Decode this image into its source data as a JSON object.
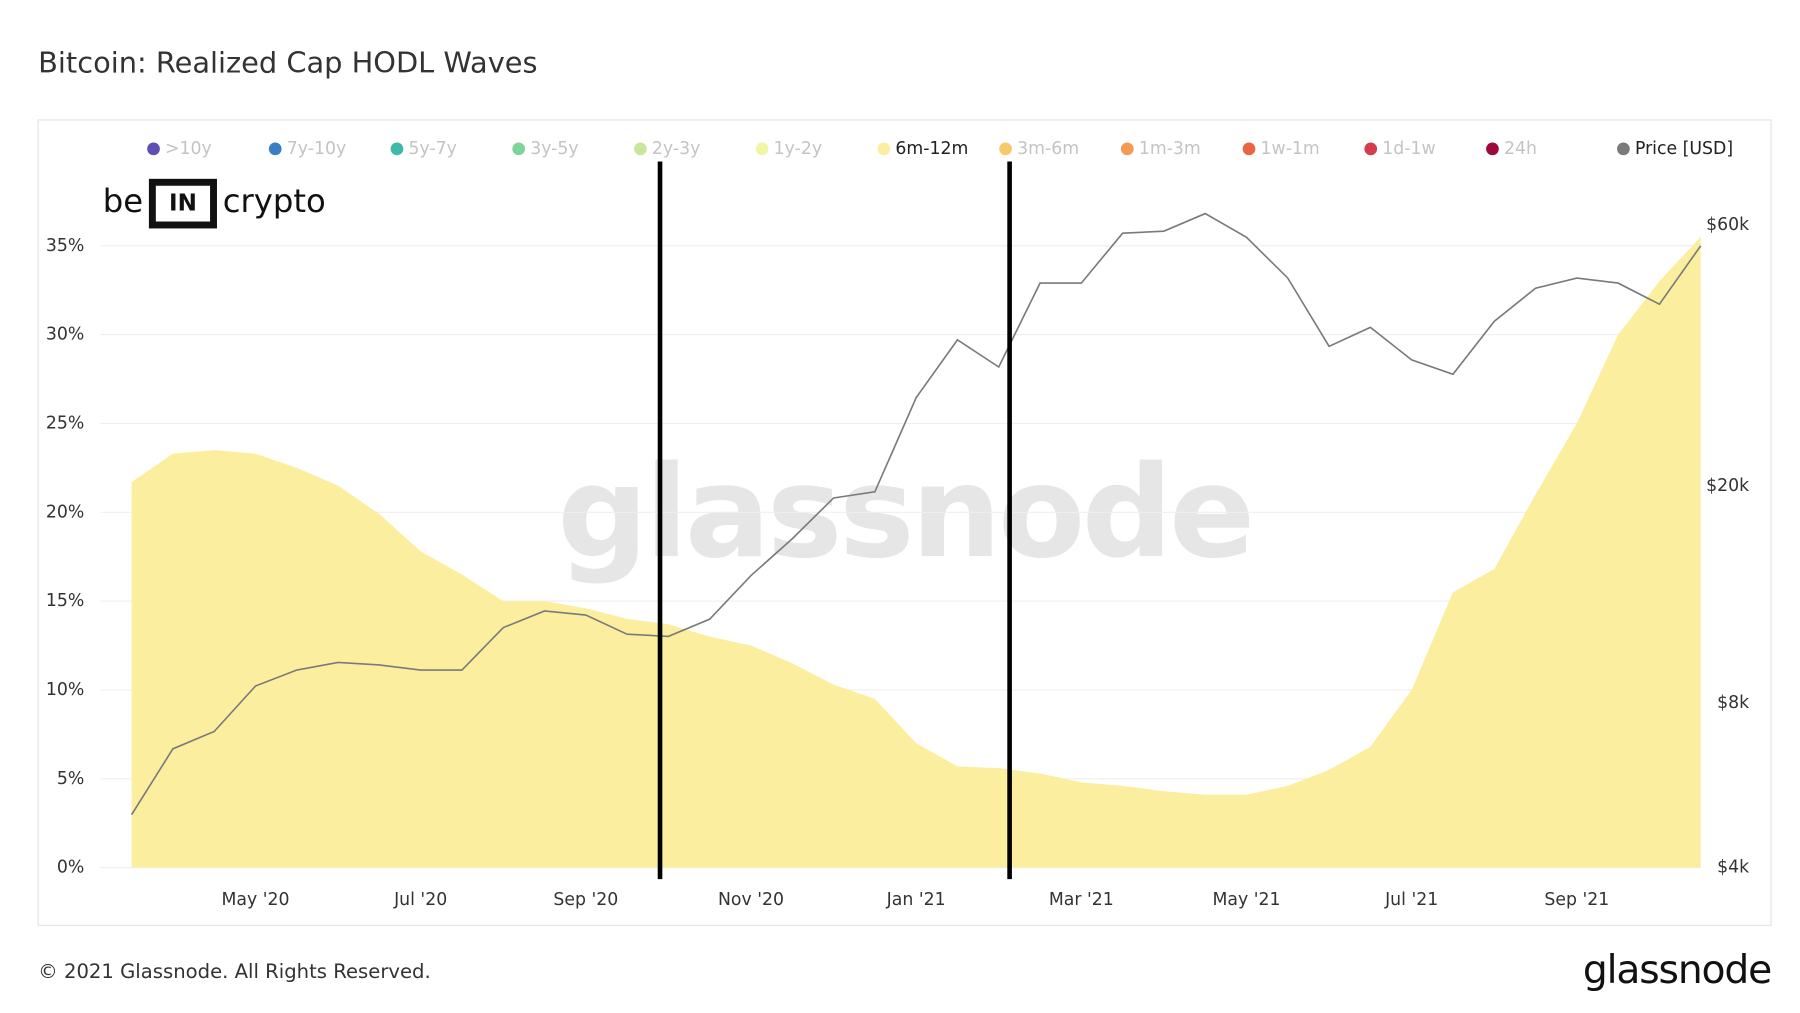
{
  "chart_data": {
    "type": "area",
    "title": "Bitcoin: Realized Cap HODL Waves",
    "footer": "© 2021 Glassnode. All Rights Reserved.",
    "brand": "glassnode",
    "watermark": "glassnode",
    "partner_logo": {
      "left": "be",
      "mark": "IN",
      "right": "crypto"
    },
    "categories": [
      null,
      null,
      null,
      "May '20",
      null,
      null,
      null,
      "Jul '20",
      null,
      null,
      null,
      "Sep '20",
      null,
      null,
      null,
      "Nov '20",
      null,
      null,
      null,
      "Jan '21",
      null,
      null,
      null,
      "Mar '21",
      null,
      null,
      null,
      "May '21",
      null,
      null,
      null,
      "Jul '21",
      null,
      null,
      null,
      "Sep '21",
      null,
      null,
      null
    ],
    "series": [
      {
        "name": ">10y",
        "color": "#5f4fb5",
        "visible": false
      },
      {
        "name": "7y-10y",
        "color": "#3a7fc1",
        "visible": false
      },
      {
        "name": "5y-7y",
        "color": "#3eb8a8",
        "visible": false
      },
      {
        "name": "3y-5y",
        "color": "#7fd49b",
        "visible": false
      },
      {
        "name": "2y-3y",
        "color": "#c7e89a",
        "visible": false
      },
      {
        "name": "1y-2y",
        "color": "#f3f5a6",
        "visible": false
      },
      {
        "name": "6m-12m",
        "color": "#fcee9f",
        "visible": true,
        "values": [
          21.7,
          23.3,
          23.5,
          23.3,
          22.5,
          21.5,
          19.9,
          17.8,
          16.5,
          15,
          15,
          14.6,
          14,
          13.7,
          13,
          12.5,
          11.5,
          10.3,
          9.5,
          7,
          5.7,
          5.6,
          5.3,
          4.8,
          4.6,
          4.3,
          4.1,
          4.1,
          4.6,
          5.5,
          6.8,
          10,
          15.5,
          16.8,
          21,
          25,
          30,
          33,
          35.5
        ]
      },
      {
        "name": "3m-6m",
        "color": "#f7c96a",
        "visible": false
      },
      {
        "name": "1m-3m",
        "color": "#f49a55",
        "visible": false
      },
      {
        "name": "1w-1m",
        "color": "#ea6542",
        "visible": false
      },
      {
        "name": "1d-1w",
        "color": "#d43d4d",
        "visible": false
      },
      {
        "name": "24h",
        "color": "#9c0a3c",
        "visible": false
      },
      {
        "name": "Price [USD]",
        "color": "#7a7a7a",
        "visible": true,
        "axis": "y2",
        "values": [
          5000,
          6600,
          7100,
          8600,
          9200,
          9500,
          9400,
          9200,
          9200,
          11000,
          11800,
          11600,
          10700,
          10600,
          11400,
          13700,
          16000,
          19000,
          19500,
          29000,
          37000,
          33000,
          47000,
          47000,
          58000,
          58500,
          63000,
          57000,
          48000,
          36000,
          39000,
          34000,
          32000,
          40000,
          46000,
          48000,
          47000,
          43000,
          55000
        ]
      }
    ],
    "ylim": [
      0,
      40
    ],
    "yticks": [
      {
        "value": 0,
        "label": "0%"
      },
      {
        "value": 5,
        "label": "5%"
      },
      {
        "value": 10,
        "label": "10%"
      },
      {
        "value": 15,
        "label": "15%"
      },
      {
        "value": 20,
        "label": "20%"
      },
      {
        "value": 25,
        "label": "25%"
      },
      {
        "value": 30,
        "label": "30%"
      },
      {
        "value": 35,
        "label": "35%"
      }
    ],
    "y2lim": [
      4000,
      80000
    ],
    "y2log": true,
    "y2ticks": [
      {
        "value": 4000,
        "label": "$4k"
      },
      {
        "value": 8000,
        "label": "$8k"
      },
      {
        "value": 20000,
        "label": "$20k"
      },
      {
        "value": 60000,
        "label": "$60k"
      }
    ],
    "grid": true
  }
}
